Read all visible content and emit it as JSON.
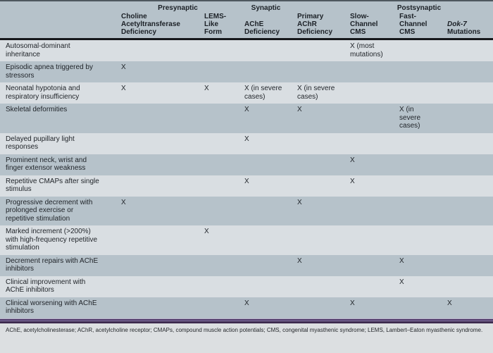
{
  "table": {
    "group_headers": [
      {
        "label": "",
        "span": 1
      },
      {
        "label": "Presynaptic",
        "span": 2
      },
      {
        "label": "Synaptic",
        "span": 1
      },
      {
        "label": "",
        "span": 1
      },
      {
        "label": "Postsynaptic",
        "span": 3
      }
    ],
    "columns": [
      {
        "label": "Choline\nAcetyltransferase\nDeficiency",
        "name": "choline-acetyltransferase-deficiency"
      },
      {
        "label": "LEMS-\nLike\nForm",
        "name": "lems-like-form"
      },
      {
        "label": "AChE\nDeficiency",
        "name": "ache-deficiency"
      },
      {
        "label": "Primary\nAChR\nDeficiency",
        "name": "primary-achr-deficiency"
      },
      {
        "label": "Slow-\nChannel\nCMS",
        "name": "slow-channel-cms"
      },
      {
        "label": "Fast-\nChannel\nCMS",
        "name": "fast-channel-cms"
      },
      {
        "label": "Dok-7\nMutations",
        "name": "dok-7-mutations",
        "italic_part": "Dok-7"
      }
    ],
    "rows": [
      {
        "label": "Autosomal-dominant\ninheritance",
        "cells": [
          "",
          "",
          "",
          "",
          "X (most\nmutations)",
          "",
          ""
        ]
      },
      {
        "label": "Episodic apnea triggered by\nstressors",
        "cells": [
          "X",
          "",
          "",
          "",
          "",
          "",
          ""
        ]
      },
      {
        "label": "Neonatal hypotonia and\nrespiratory insufficiency",
        "cells": [
          "X",
          "X",
          "X (in severe\ncases)",
          "X (in severe\ncases)",
          "",
          "",
          ""
        ]
      },
      {
        "label": "Skeletal deformities",
        "cells": [
          "",
          "",
          "X",
          "X",
          "",
          "X (in\nsevere\ncases)",
          ""
        ]
      },
      {
        "label": "Delayed pupillary light\nresponses",
        "cells": [
          "",
          "",
          "X",
          "",
          "",
          "",
          ""
        ]
      },
      {
        "label": "Prominent neck, wrist and\nfinger extensor weakness",
        "cells": [
          "",
          "",
          "",
          "",
          "X",
          "",
          ""
        ]
      },
      {
        "label": "Repetitive CMAPs after single\nstimulus",
        "cells": [
          "",
          "",
          "X",
          "",
          "X",
          "",
          ""
        ]
      },
      {
        "label": "Progressive decrement with\nprolonged exercise or\nrepetitive stimulation",
        "cells": [
          "X",
          "",
          "",
          "X",
          "",
          "",
          ""
        ]
      },
      {
        "label": "Marked increment (>200%)\nwith high-frequency repetitive\nstimulation",
        "cells": [
          "",
          "X",
          "",
          "",
          "",
          "",
          ""
        ]
      },
      {
        "label": "Decrement repairs with AChE\ninhibitors",
        "cells": [
          "",
          "",
          "",
          "X",
          "",
          "X",
          ""
        ]
      },
      {
        "label": "Clinical improvement with\nAChE inhibitors",
        "cells": [
          "",
          "",
          "",
          "",
          "",
          "X",
          ""
        ]
      },
      {
        "label": "Clinical worsening with AChE\ninhibitors",
        "cells": [
          "",
          "",
          "X",
          "",
          "X",
          "",
          "X"
        ]
      }
    ]
  },
  "footnote": "AChE, acetylcholinesterase; AChR, acetylcholine receptor; CMAPs, compound muscle action potentials; CMS, congenital myasthenic syndrome; LEMS, Lambert–Eaton myasthenic syndrome.",
  "colors": {
    "row_light": "#d9dee2",
    "row_dark": "#b6c2ca",
    "header_bg": "#b6c2ca",
    "header_rule": "#16181b",
    "separator_purple": "#4a3566",
    "footer_bg": "#dcdfe1"
  }
}
